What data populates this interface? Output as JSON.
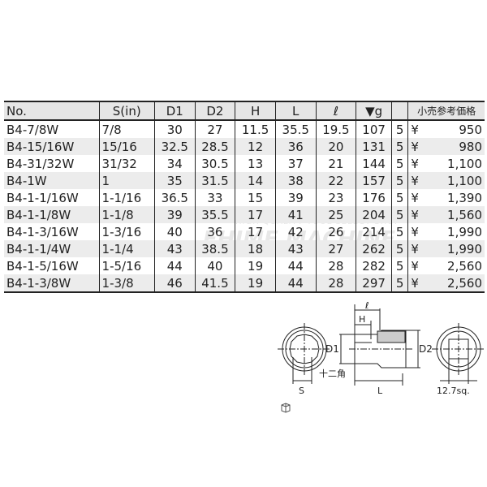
{
  "table": {
    "headers": [
      "No.",
      "S(in)",
      "D1",
      "D2",
      "H",
      "L",
      "ℓ",
      "▼g",
      "box-icon",
      "小売参考価格"
    ],
    "rows": [
      [
        "B4-7/8W",
        "7/8",
        "30",
        "27",
        "11.5",
        "35.5",
        "19.5",
        "107",
        "5",
        "¥",
        "950"
      ],
      [
        "B4-15/16W",
        "15/16",
        "32.5",
        "28.5",
        "12",
        "36",
        "20",
        "131",
        "5",
        "¥",
        "980"
      ],
      [
        "B4-31/32W",
        "31/32",
        "34",
        "30.5",
        "13",
        "37",
        "21",
        "144",
        "5",
        "¥",
        "1,100"
      ],
      [
        "B4-1W",
        "1",
        "35",
        "31.5",
        "14",
        "38",
        "22",
        "157",
        "5",
        "¥",
        "1,100"
      ],
      [
        "B4-1-1/16W",
        "1-1/16",
        "36.5",
        "33",
        "15",
        "39",
        "23",
        "176",
        "5",
        "¥",
        "1,390"
      ],
      [
        "B4-1-1/8W",
        "1-1/8",
        "39",
        "35.5",
        "17",
        "41",
        "25",
        "204",
        "5",
        "¥",
        "1,560"
      ],
      [
        "B4-1-3/16W",
        "1-3/16",
        "40",
        "36",
        "17",
        "42",
        "26",
        "214",
        "5",
        "¥",
        "1,990"
      ],
      [
        "B4-1-1/4W",
        "1-1/4",
        "43",
        "38.5",
        "18",
        "43",
        "27",
        "262",
        "5",
        "¥",
        "1,990"
      ],
      [
        "B4-1-5/16W",
        "1-5/16",
        "44",
        "40",
        "19",
        "44",
        "28",
        "282",
        "5",
        "¥",
        "2,560"
      ],
      [
        "B4-1-3/8W",
        "1-3/8",
        "46",
        "41.5",
        "19",
        "44",
        "28",
        "297",
        "5",
        "¥",
        "2,560"
      ]
    ]
  },
  "watermark": {
    "line1": "HIGH QUALITY TOOL SELECT SHOP",
    "line2": "EHIME MACHINE"
  },
  "diagram": {
    "label_l": "ℓ",
    "label_h": "H",
    "label_d1": "D1",
    "label_d2": "D2",
    "label_12pt": "十二角",
    "label_s": "S",
    "label_L": "L",
    "label_sq": "12.7sq."
  }
}
